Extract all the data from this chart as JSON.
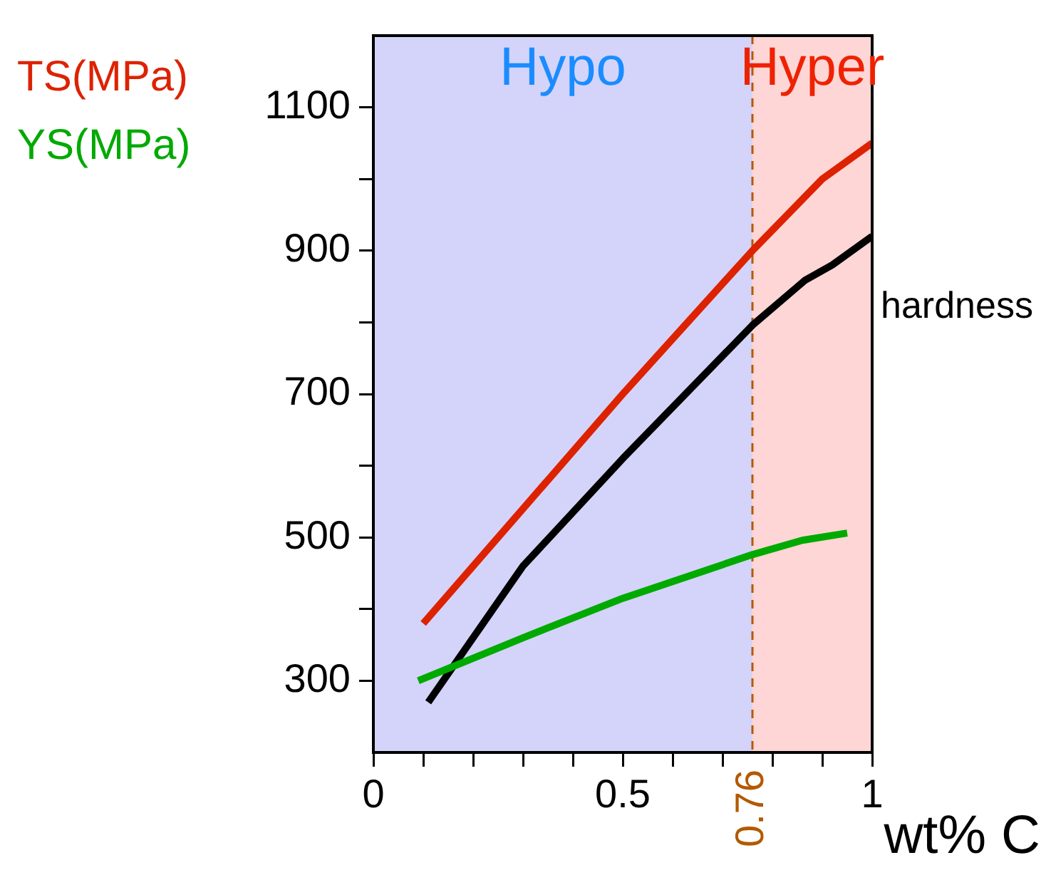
{
  "chart_data": {
    "type": "line",
    "xlabel": "wt% C",
    "xlim": [
      0,
      1
    ],
    "xticks": [
      0,
      {
        "value": 0.1,
        "label": null
      },
      {
        "value": 0.2,
        "label": null
      },
      {
        "value": 0.3,
        "label": null
      },
      {
        "value": 0.4,
        "label": null
      },
      0.5,
      {
        "value": 0.6,
        "label": null
      },
      {
        "value": 0.7,
        "label": null
      },
      {
        "value": 0.8,
        "label": null
      },
      {
        "value": 0.9,
        "label": null
      },
      1
    ],
    "ylim": [
      200,
      1200
    ],
    "yticks": [
      300,
      {
        "value": 400,
        "label": null
      },
      500,
      {
        "value": 600,
        "label": null
      },
      700,
      {
        "value": 800,
        "label": null
      },
      900,
      {
        "value": 1000,
        "label": null
      },
      1100
    ],
    "series": [
      {
        "name": "TS(MPa)",
        "color": "#dd2200",
        "x": [
          0.1,
          0.3,
          0.5,
          0.76,
          0.9,
          1.0
        ],
        "values": [
          380,
          540,
          700,
          900,
          1000,
          1050
        ]
      },
      {
        "name": "YS(MPa)",
        "color": "#00aa00",
        "x": [
          0.09,
          0.3,
          0.5,
          0.76,
          0.86,
          0.95
        ],
        "values": [
          300,
          360,
          415,
          476,
          496,
          506
        ]
      },
      {
        "name": "hardness",
        "color": "#000000",
        "x": [
          0.11,
          0.3,
          0.5,
          0.76,
          0.866,
          0.92,
          1.0
        ],
        "values": [
          270,
          460,
          610,
          796,
          859,
          880,
          920
        ]
      }
    ],
    "bands": [
      {
        "axis": "x",
        "from": 0,
        "to": 0.76,
        "label": "Hypo",
        "color": "#d4d4fa"
      },
      {
        "axis": "x",
        "from": 0.76,
        "to": 1,
        "label": "Hyper",
        "color": "#ffd6d6"
      }
    ],
    "ref_lines": [
      {
        "axis": "x",
        "value": 0.76,
        "label": "0.76",
        "color": "#b35900",
        "line_style": "dashed"
      }
    ],
    "legend": false,
    "marker": "none",
    "line_style": "solid"
  }
}
